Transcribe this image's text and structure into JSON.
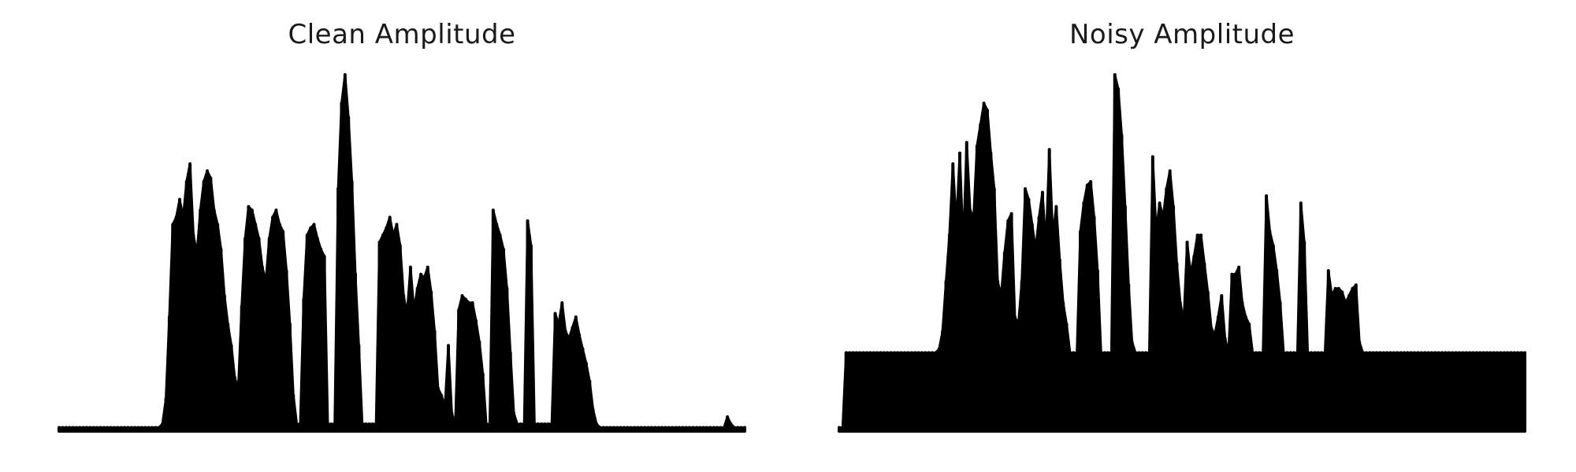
{
  "chart_data": [
    {
      "type": "area",
      "title": "Clean Amplitude",
      "xlabel": "",
      "ylabel": "",
      "axes_visible": false,
      "grid": false,
      "color": "#000000",
      "x_samples": 200,
      "ylim": [
        0,
        1.0
      ],
      "values": [
        0.01,
        0.01,
        0.01,
        0.01,
        0.01,
        0.01,
        0.01,
        0.01,
        0.01,
        0.01,
        0.01,
        0.01,
        0.01,
        0.01,
        0.01,
        0.01,
        0.01,
        0.01,
        0.01,
        0.01,
        0.01,
        0.01,
        0.01,
        0.01,
        0.01,
        0.01,
        0.01,
        0.01,
        0.01,
        0.01,
        0.02,
        0.09,
        0.32,
        0.58,
        0.6,
        0.65,
        0.6,
        0.7,
        0.75,
        0.55,
        0.5,
        0.62,
        0.7,
        0.73,
        0.71,
        0.62,
        0.58,
        0.51,
        0.38,
        0.3,
        0.24,
        0.15,
        0.12,
        0.35,
        0.54,
        0.63,
        0.62,
        0.58,
        0.54,
        0.46,
        0.42,
        0.54,
        0.6,
        0.62,
        0.58,
        0.56,
        0.45,
        0.3,
        0.1,
        0.02,
        0.02,
        0.37,
        0.55,
        0.57,
        0.58,
        0.54,
        0.51,
        0.49,
        0.02,
        0.02,
        0.02,
        0.68,
        0.92,
        1.0,
        0.88,
        0.7,
        0.44,
        0.24,
        0.02,
        0.02,
        0.02,
        0.02,
        0.02,
        0.53,
        0.55,
        0.57,
        0.6,
        0.55,
        0.58,
        0.52,
        0.38,
        0.33,
        0.46,
        0.34,
        0.4,
        0.44,
        0.43,
        0.46,
        0.39,
        0.28,
        0.12,
        0.1,
        0.07,
        0.24,
        0.05,
        0.02,
        0.34,
        0.38,
        0.37,
        0.36,
        0.36,
        0.31,
        0.25,
        0.16,
        0.02,
        0.02,
        0.62,
        0.58,
        0.55,
        0.51,
        0.4,
        0.22,
        0.05,
        0.02,
        0.02,
        0.02,
        0.59,
        0.52,
        0.02,
        0.02,
        0.02,
        0.02,
        0.02,
        0.02,
        0.33,
        0.3,
        0.36,
        0.28,
        0.26,
        0.29,
        0.32,
        0.27,
        0.23,
        0.19,
        0.14,
        0.06,
        0.02,
        0.01,
        0.01,
        0.01,
        0.01,
        0.01,
        0.01,
        0.01,
        0.01,
        0.01,
        0.01,
        0.01,
        0.01,
        0.01,
        0.01,
        0.01,
        0.01,
        0.01,
        0.01,
        0.01,
        0.01,
        0.01,
        0.01,
        0.01,
        0.01,
        0.01,
        0.01,
        0.01,
        0.01,
        0.01,
        0.01,
        0.01,
        0.01,
        0.01,
        0.01,
        0.01,
        0.01,
        0.01,
        0.04,
        0.02,
        0.01,
        0.01,
        0.01,
        0.01
      ]
    },
    {
      "type": "area",
      "title": "Noisy Amplitude",
      "xlabel": "",
      "ylabel": "",
      "axes_visible": false,
      "grid": false,
      "color": "#000000",
      "x_samples": 200,
      "ylim": [
        0,
        1.0
      ],
      "values": [
        0.01,
        0.01,
        0.22,
        0.22,
        0.22,
        0.22,
        0.22,
        0.22,
        0.22,
        0.22,
        0.22,
        0.22,
        0.22,
        0.22,
        0.22,
        0.22,
        0.22,
        0.22,
        0.22,
        0.22,
        0.22,
        0.22,
        0.22,
        0.22,
        0.22,
        0.22,
        0.22,
        0.22,
        0.22,
        0.23,
        0.28,
        0.42,
        0.55,
        0.75,
        0.58,
        0.78,
        0.52,
        0.81,
        0.62,
        0.6,
        0.8,
        0.86,
        0.92,
        0.9,
        0.78,
        0.68,
        0.42,
        0.38,
        0.5,
        0.59,
        0.61,
        0.32,
        0.3,
        0.42,
        0.68,
        0.65,
        0.58,
        0.51,
        0.6,
        0.67,
        0.52,
        0.79,
        0.55,
        0.63,
        0.48,
        0.36,
        0.3,
        0.22,
        0.22,
        0.22,
        0.56,
        0.64,
        0.69,
        0.7,
        0.6,
        0.45,
        0.22,
        0.22,
        0.22,
        0.22,
        1.0,
        0.96,
        0.83,
        0.63,
        0.41,
        0.25,
        0.22,
        0.22,
        0.22,
        0.22,
        0.22,
        0.77,
        0.56,
        0.64,
        0.6,
        0.68,
        0.73,
        0.63,
        0.47,
        0.36,
        0.31,
        0.53,
        0.44,
        0.49,
        0.55,
        0.55,
        0.47,
        0.39,
        0.29,
        0.27,
        0.32,
        0.38,
        0.26,
        0.22,
        0.44,
        0.44,
        0.46,
        0.36,
        0.32,
        0.3,
        0.22,
        0.22,
        0.22,
        0.22,
        0.66,
        0.56,
        0.52,
        0.45,
        0.36,
        0.22,
        0.22,
        0.22,
        0.22,
        0.22,
        0.64,
        0.53,
        0.22,
        0.22,
        0.22,
        0.22,
        0.22,
        0.22,
        0.45,
        0.38,
        0.4,
        0.4,
        0.39,
        0.36,
        0.38,
        0.4,
        0.41,
        0.25,
        0.22,
        0.22,
        0.22,
        0.22,
        0.22,
        0.22,
        0.22,
        0.22,
        0.22,
        0.22,
        0.22,
        0.22,
        0.22,
        0.22,
        0.22,
        0.22,
        0.22,
        0.22,
        0.22,
        0.22,
        0.22,
        0.22,
        0.22,
        0.22,
        0.22,
        0.22,
        0.22,
        0.22,
        0.22,
        0.22,
        0.22,
        0.22,
        0.22,
        0.22,
        0.22,
        0.22,
        0.22,
        0.22,
        0.22,
        0.22,
        0.22,
        0.22,
        0.22,
        0.22,
        0.22,
        0.22,
        0.22,
        0.22
      ]
    }
  ]
}
